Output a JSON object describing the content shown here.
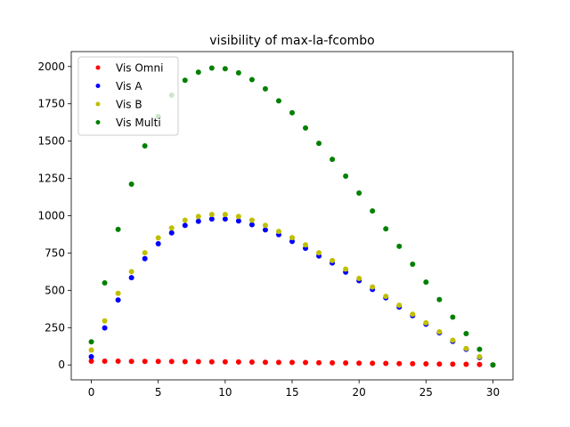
{
  "chart_data": {
    "type": "scatter",
    "title": "visibility of max-la-fcombo",
    "xlabel": "",
    "ylabel": "",
    "xlim": [
      -1.5,
      31.5
    ],
    "ylim": [
      -100,
      2100
    ],
    "xticks": [
      0,
      5,
      10,
      15,
      20,
      25,
      30
    ],
    "yticks": [
      0,
      250,
      500,
      750,
      1000,
      1250,
      1500,
      1750,
      2000
    ],
    "grid": false,
    "legend_position": "top-left",
    "x": [
      0,
      1,
      2,
      3,
      4,
      5,
      6,
      7,
      8,
      9,
      10,
      11,
      12,
      13,
      14,
      15,
      16,
      17,
      18,
      19,
      20,
      21,
      22,
      23,
      24,
      25,
      26,
      27,
      28,
      29,
      30
    ],
    "series": [
      {
        "name": "Vis Omni",
        "color": "#ff0000",
        "values": [
          25,
          25,
          25,
          24,
          24,
          24,
          23,
          22,
          22,
          21,
          21,
          20,
          19,
          18,
          17,
          17,
          16,
          15,
          14,
          13,
          12,
          11,
          10,
          9,
          8,
          7,
          6,
          5,
          4,
          3,
          0
        ]
      },
      {
        "name": "Vis A",
        "color": "#0000ff",
        "values": [
          55,
          248,
          435,
          585,
          712,
          812,
          885,
          935,
          963,
          978,
          978,
          965,
          940,
          905,
          873,
          828,
          782,
          730,
          683,
          622,
          565,
          506,
          450,
          388,
          330,
          273,
          215,
          158,
          105,
          50,
          0
        ]
      },
      {
        "name": "Vis B",
        "color": "#bfbf00",
        "values": [
          100,
          295,
          480,
          625,
          752,
          852,
          918,
          970,
          995,
          1008,
          1008,
          995,
          970,
          935,
          895,
          853,
          805,
          752,
          700,
          642,
          580,
          522,
          460,
          400,
          340,
          282,
          222,
          165,
          110,
          55,
          0
        ]
      },
      {
        "name": "Vis Multi",
        "color": "#008000",
        "values": [
          155,
          550,
          908,
          1212,
          1468,
          1665,
          1808,
          1908,
          1962,
          1990,
          1985,
          1958,
          1912,
          1850,
          1770,
          1690,
          1588,
          1485,
          1378,
          1265,
          1152,
          1032,
          912,
          795,
          675,
          555,
          438,
          320,
          210,
          105,
          0
        ]
      }
    ]
  }
}
